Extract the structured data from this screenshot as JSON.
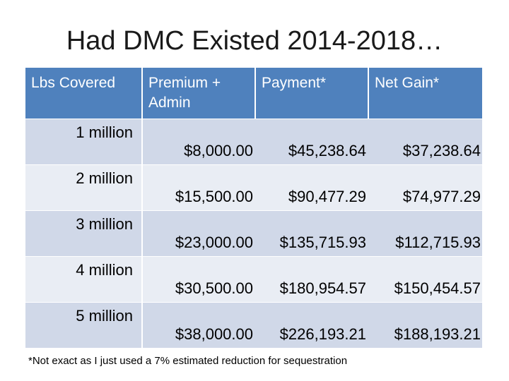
{
  "slide": {
    "title": "Had DMC Existed 2014-2018…",
    "footnote": "*Not exact as I just used a 7% estimated reduction for sequestration"
  },
  "table": {
    "headers": [
      "Lbs Covered",
      "Premium + Admin",
      "Payment*",
      "Net Gain*"
    ],
    "rows": [
      {
        "lbs": "1 million",
        "premium": "$8,000.00",
        "payment": "$45,238.64",
        "net": "$37,238.64"
      },
      {
        "lbs": "2 million",
        "premium": "$15,500.00",
        "payment": "$90,477.29",
        "net": "$74,977.29"
      },
      {
        "lbs": "3 million",
        "premium": "$23,000.00",
        "payment": "$135,715.93",
        "net": "$112,715.93"
      },
      {
        "lbs": "4 million",
        "premium": "$30,500.00",
        "payment": "$180,954.57",
        "net": "$150,454.57"
      },
      {
        "lbs": "5 million",
        "premium": "$38,000.00",
        "payment": "$226,193.21",
        "net": "$188,193.21"
      }
    ]
  },
  "colors": {
    "header_bg": "#4f81bd",
    "row_odd_bg": "#d0d8e8",
    "row_even_bg": "#e9edf4"
  }
}
